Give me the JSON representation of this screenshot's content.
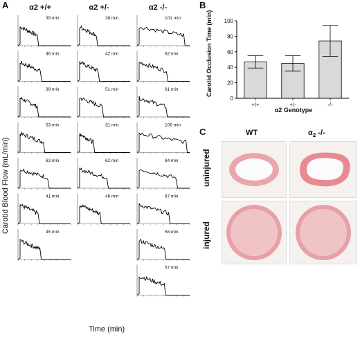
{
  "panel_a": {
    "letter": "A",
    "ylabel": "Carotid Blood Flow (mL/min)",
    "xlabel": "Time (min)",
    "columns": [
      "α2 +/+",
      "α2 +/-",
      "α2 -/-"
    ],
    "traces": [
      {
        "times": [
          "39 min",
          "46 min",
          "39 min",
          "53 min",
          "63 min",
          "41 min",
          "45 min"
        ]
      },
      {
        "times": [
          "38 min",
          "42 min",
          "51 min",
          "31 min",
          "62 min",
          "46 min"
        ]
      },
      {
        "times": [
          "101 min",
          "62 min",
          "61 min",
          "106 min",
          "84 min",
          "67 min",
          "58 min",
          "57 min"
        ]
      }
    ]
  },
  "chart_data": {
    "type": "bar",
    "panel": "B",
    "title": "",
    "categories": [
      "+/+",
      "+/-",
      "-/-"
    ],
    "values": [
      47,
      45,
      74
    ],
    "errors": [
      8,
      10,
      20
    ],
    "ylabel": "Carotid Occlusion Time (min)",
    "xlabel": "α2 Genotype",
    "ylim": [
      0,
      100
    ],
    "yticks": [
      0,
      20,
      40,
      60,
      80,
      100
    ],
    "bar_color": "#d9d9d9"
  },
  "panel_c": {
    "letter": "C",
    "col_wt": "WT",
    "col_ko": "α",
    "col_ko_sub": "2",
    "col_ko_suffix": " -/-",
    "row_uninjured": "uninjured",
    "row_injured": "injured",
    "tissue_color": "#e89aa0"
  }
}
